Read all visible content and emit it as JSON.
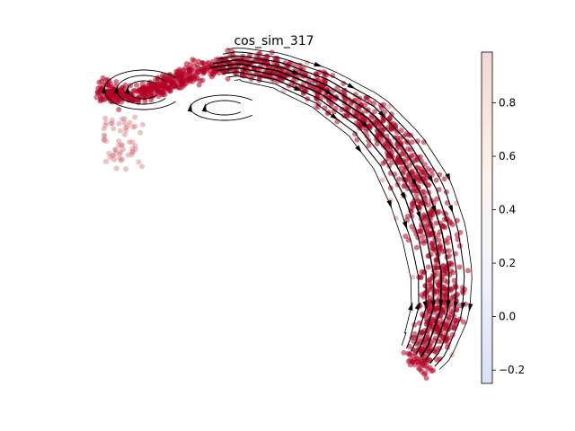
{
  "chart_data": {
    "type": "scatter",
    "title": "cos_sim_317",
    "colorbar": {
      "colormap": "coolwarm",
      "min": -0.25,
      "max": 0.99,
      "ticks": [
        -0.2,
        0.0,
        0.2,
        0.4,
        0.6,
        0.8
      ],
      "tick_labels": [
        "−0.2",
        "0.0",
        "0.2",
        "0.4",
        "0.6",
        "0.8"
      ]
    },
    "axes": {
      "visible": false,
      "grid": false
    },
    "overlay": "velocity streamlines with arrowheads (black)",
    "point_color": "#b40426",
    "point_color_light": "#d77a80",
    "line_color": "#000000"
  }
}
